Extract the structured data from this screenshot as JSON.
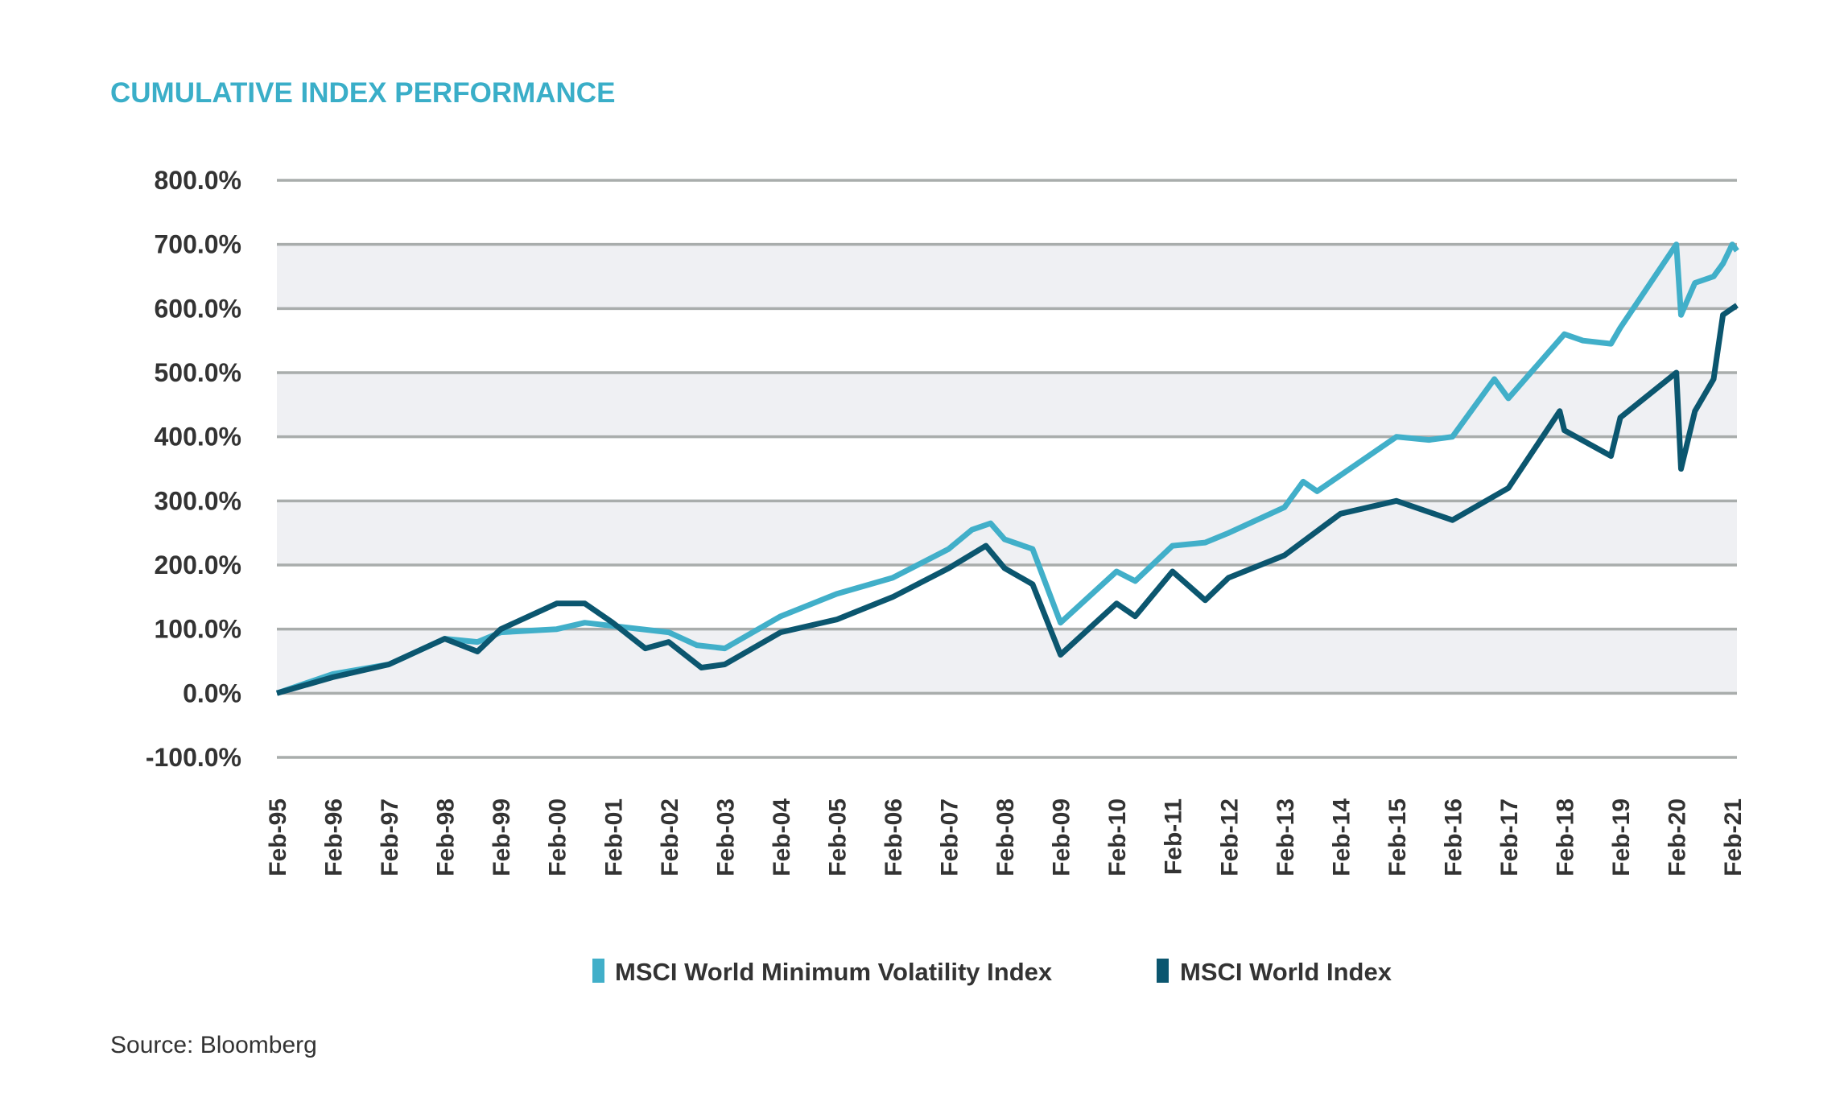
{
  "chart_data": {
    "type": "line",
    "title": "CUMULATIVE INDEX PERFORMANCE",
    "source": "Source: Bloomberg",
    "xlabel": "",
    "ylabel": "",
    "ylim": [
      -100,
      800
    ],
    "yticks": [
      800,
      700,
      600,
      500,
      400,
      300,
      200,
      100,
      0,
      -100
    ],
    "ytick_labels": [
      "800.0%",
      "700.0%",
      "600.0%",
      "500.0%",
      "400.0%",
      "300.0%",
      "200.0%",
      "100.0%",
      "0.0%",
      "-100.0%"
    ],
    "xlim": [
      "1995-02",
      "2021-03"
    ],
    "xtick_labels": [
      "Feb-95",
      "Feb-96",
      "Feb-97",
      "Feb-98",
      "Feb-99",
      "Feb-00",
      "Feb-01",
      "Feb-02",
      "Feb-03",
      "Feb-04",
      "Feb-05",
      "Feb-06",
      "Feb-07",
      "Feb-08",
      "Feb-09",
      "Feb-10",
      "Feb-11",
      "Feb-12",
      "Feb-13",
      "Feb-14",
      "Feb-15",
      "Feb-16",
      "Feb-17",
      "Feb-18",
      "Feb-19",
      "Feb-20",
      "Feb-21"
    ],
    "grid": true,
    "banded_background": true,
    "legend_position": "bottom-center",
    "series": [
      {
        "name": "MSCI World Minimum Volatility Index",
        "color": "#41afc9",
        "points": [
          [
            "1995-02",
            0
          ],
          [
            "1996-02",
            30
          ],
          [
            "1997-02",
            45
          ],
          [
            "1998-02",
            85
          ],
          [
            "1998-09",
            80
          ],
          [
            "1999-02",
            95
          ],
          [
            "2000-02",
            100
          ],
          [
            "2000-08",
            110
          ],
          [
            "2001-02",
            105
          ],
          [
            "2002-02",
            95
          ],
          [
            "2002-08",
            75
          ],
          [
            "2003-02",
            70
          ],
          [
            "2004-02",
            120
          ],
          [
            "2005-02",
            155
          ],
          [
            "2006-02",
            180
          ],
          [
            "2007-02",
            225
          ],
          [
            "2007-07",
            255
          ],
          [
            "2007-11",
            265
          ],
          [
            "2008-02",
            240
          ],
          [
            "2008-08",
            225
          ],
          [
            "2009-02",
            110
          ],
          [
            "2010-02",
            190
          ],
          [
            "2010-06",
            175
          ],
          [
            "2011-02",
            230
          ],
          [
            "2011-09",
            235
          ],
          [
            "2012-02",
            250
          ],
          [
            "2013-02",
            290
          ],
          [
            "2013-06",
            330
          ],
          [
            "2013-09",
            315
          ],
          [
            "2014-02",
            340
          ],
          [
            "2015-02",
            400
          ],
          [
            "2015-09",
            395
          ],
          [
            "2016-02",
            400
          ],
          [
            "2016-11",
            490
          ],
          [
            "2017-02",
            460
          ],
          [
            "2018-02",
            560
          ],
          [
            "2018-06",
            550
          ],
          [
            "2018-12",
            545
          ],
          [
            "2019-02",
            570
          ],
          [
            "2020-02",
            700
          ],
          [
            "2020-03",
            590
          ],
          [
            "2020-06",
            640
          ],
          [
            "2020-10",
            650
          ],
          [
            "2020-12",
            670
          ],
          [
            "2021-02",
            700
          ],
          [
            "2021-03",
            690
          ]
        ]
      },
      {
        "name": "MSCI World Index",
        "color": "#0b566f",
        "points": [
          [
            "1995-02",
            0
          ],
          [
            "1996-02",
            25
          ],
          [
            "1997-02",
            45
          ],
          [
            "1998-02",
            85
          ],
          [
            "1998-09",
            65
          ],
          [
            "1999-02",
            100
          ],
          [
            "2000-02",
            140
          ],
          [
            "2000-08",
            140
          ],
          [
            "2001-02",
            110
          ],
          [
            "2001-09",
            70
          ],
          [
            "2002-02",
            80
          ],
          [
            "2002-09",
            40
          ],
          [
            "2003-02",
            45
          ],
          [
            "2004-02",
            95
          ],
          [
            "2005-02",
            115
          ],
          [
            "2006-02",
            150
          ],
          [
            "2007-02",
            195
          ],
          [
            "2007-10",
            230
          ],
          [
            "2008-02",
            195
          ],
          [
            "2008-08",
            170
          ],
          [
            "2009-02",
            60
          ],
          [
            "2010-02",
            140
          ],
          [
            "2010-06",
            120
          ],
          [
            "2011-02",
            190
          ],
          [
            "2011-09",
            145
          ],
          [
            "2012-02",
            180
          ],
          [
            "2013-02",
            215
          ],
          [
            "2014-02",
            280
          ],
          [
            "2015-02",
            300
          ],
          [
            "2016-02",
            270
          ],
          [
            "2017-02",
            320
          ],
          [
            "2018-01",
            440
          ],
          [
            "2018-02",
            410
          ],
          [
            "2018-12",
            370
          ],
          [
            "2019-02",
            430
          ],
          [
            "2020-02",
            500
          ],
          [
            "2020-03",
            350
          ],
          [
            "2020-06",
            440
          ],
          [
            "2020-10",
            490
          ],
          [
            "2020-12",
            590
          ],
          [
            "2021-02",
            600
          ],
          [
            "2021-03",
            605
          ]
        ]
      }
    ]
  }
}
